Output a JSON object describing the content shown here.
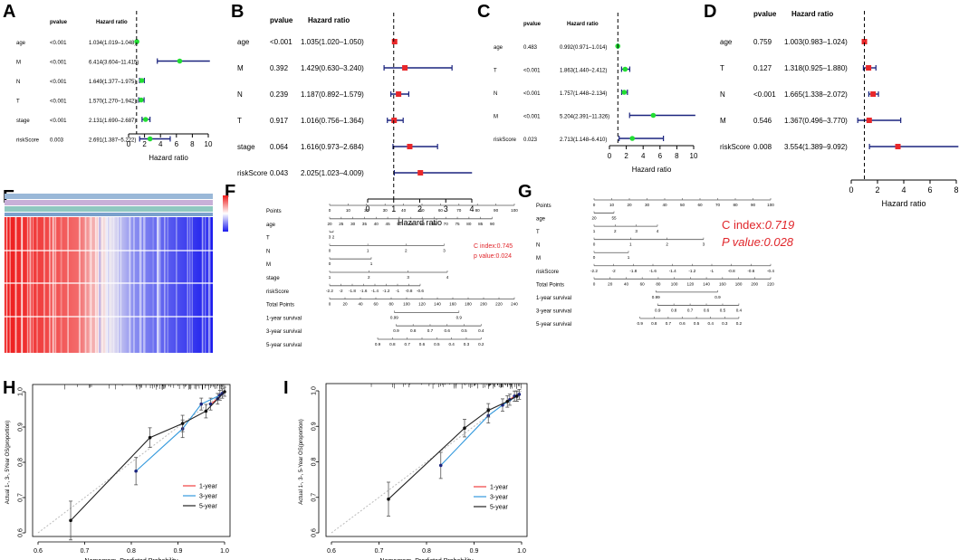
{
  "panel_labels": [
    "A",
    "B",
    "C",
    "D",
    "E",
    "F",
    "G",
    "H",
    "I"
  ],
  "forest_header": {
    "pvalue": "pvalue",
    "hr": "Hazard ratio",
    "xlabel": "Hazard ratio"
  },
  "chart_data": [
    {
      "id": "A",
      "type": "forest",
      "title": "",
      "xlabel": "Hazard ratio",
      "xlim": [
        0,
        10
      ],
      "ticks": [
        "0",
        "2",
        "4",
        "6",
        "8",
        "10"
      ],
      "color": "#22dd33",
      "reference": 1,
      "rows": [
        {
          "name": "age",
          "p": "<0.001",
          "hr_text": "1.034(1.019–1.048)",
          "hr": 1.034,
          "lo": 1.019,
          "hi": 1.048
        },
        {
          "name": "M",
          "p": "<0.001",
          "hr_text": "6.414(3.604–11.415)",
          "hr": 6.414,
          "lo": 3.604,
          "hi": 11.415
        },
        {
          "name": "N",
          "p": "<0.001",
          "hr_text": "1.649(1.377–1.975)",
          "hr": 1.649,
          "lo": 1.377,
          "hi": 1.975
        },
        {
          "name": "T",
          "p": "<0.001",
          "hr_text": "1.570(1.270–1.942)",
          "hr": 1.57,
          "lo": 1.27,
          "hi": 1.942
        },
        {
          "name": "stage",
          "p": "<0.001",
          "hr_text": "2.131(1.690–2.687)",
          "hr": 2.131,
          "lo": 1.69,
          "hi": 2.687
        },
        {
          "name": "riskScore",
          "p": "0.003",
          "hr_text": "2.691(1.387–5.222)",
          "hr": 2.691,
          "lo": 1.387,
          "hi": 5.222
        }
      ]
    },
    {
      "id": "B",
      "type": "forest",
      "title": "",
      "xlabel": "Hazard ratio",
      "xlim": [
        0,
        4
      ],
      "ticks": [
        "0",
        "1",
        "2",
        "3",
        "4"
      ],
      "color": "#e8272a",
      "reference": 1,
      "rows": [
        {
          "name": "age",
          "p": "<0.001",
          "hr_text": "1.035(1.020–1.050)",
          "hr": 1.035,
          "lo": 1.02,
          "hi": 1.05
        },
        {
          "name": "M",
          "p": "0.392",
          "hr_text": "1.429(0.630–3.240)",
          "hr": 1.429,
          "lo": 0.63,
          "hi": 3.24
        },
        {
          "name": "N",
          "p": "0.239",
          "hr_text": "1.187(0.892–1.579)",
          "hr": 1.187,
          "lo": 0.892,
          "hi": 1.579
        },
        {
          "name": "T",
          "p": "0.917",
          "hr_text": "1.016(0.756–1.364)",
          "hr": 1.016,
          "lo": 0.756,
          "hi": 1.364
        },
        {
          "name": "stage",
          "p": "0.064",
          "hr_text": "1.616(0.973–2.684)",
          "hr": 1.616,
          "lo": 0.973,
          "hi": 2.684
        },
        {
          "name": "riskScore",
          "p": "0.043",
          "hr_text": "2.025(1.023–4.009)",
          "hr": 2.025,
          "lo": 1.023,
          "hi": 4.009
        }
      ]
    },
    {
      "id": "C",
      "type": "forest",
      "title": "",
      "xlabel": "Hazard ratio",
      "xlim": [
        0,
        10
      ],
      "ticks": [
        "0",
        "2",
        "4",
        "6",
        "8",
        "10"
      ],
      "color": "#22dd33",
      "reference": 1,
      "rows": [
        {
          "name": "age",
          "p": "0.483",
          "hr_text": "0.992(0.971–1.014)",
          "hr": 0.992,
          "lo": 0.971,
          "hi": 1.014
        },
        {
          "name": "T",
          "p": "<0.001",
          "hr_text": "1.863(1.440–2.412)",
          "hr": 1.863,
          "lo": 1.44,
          "hi": 2.412
        },
        {
          "name": "N",
          "p": "<0.001",
          "hr_text": "1.757(1.448–2.134)",
          "hr": 1.757,
          "lo": 1.448,
          "hi": 2.134
        },
        {
          "name": "M",
          "p": "<0.001",
          "hr_text": "5.204(2.391–11.326)",
          "hr": 5.204,
          "lo": 2.391,
          "hi": 11.326
        },
        {
          "name": "riskScore",
          "p": "0.023",
          "hr_text": "2.713(1.148–6.410)",
          "hr": 2.713,
          "lo": 1.148,
          "hi": 6.41
        }
      ]
    },
    {
      "id": "D",
      "type": "forest",
      "title": "",
      "xlabel": "Hazard ratio",
      "xlim": [
        0,
        8
      ],
      "ticks": [
        "0",
        "2",
        "4",
        "6",
        "8"
      ],
      "color": "#e8272a",
      "reference": 1,
      "rows": [
        {
          "name": "age",
          "p": "0.759",
          "hr_text": "1.003(0.983–1.024)",
          "hr": 1.003,
          "lo": 0.983,
          "hi": 1.024
        },
        {
          "name": "T",
          "p": "0.127",
          "hr_text": "1.318(0.925–1.880)",
          "hr": 1.318,
          "lo": 0.925,
          "hi": 1.88
        },
        {
          "name": "N",
          "p": "<0.001",
          "hr_text": "1.665(1.338–2.072)",
          "hr": 1.665,
          "lo": 1.338,
          "hi": 2.072
        },
        {
          "name": "M",
          "p": "0.546",
          "hr_text": "1.367(0.496–3.770)",
          "hr": 1.367,
          "lo": 0.496,
          "hi": 3.77
        },
        {
          "name": "riskScore",
          "p": "0.008",
          "hr_text": "3.554(1.389–9.092)",
          "hr": 3.554,
          "lo": 1.389,
          "hi": 9.092
        }
      ]
    },
    {
      "id": "E",
      "type": "heatmap",
      "title": "",
      "xlabel": "",
      "ylabel": "",
      "colors": [
        "#1a1aee",
        "#ffffff",
        "#ee1a1a"
      ],
      "rows": 4,
      "pattern": "high in left group, low in right group"
    },
    {
      "id": "F",
      "type": "nomogram",
      "title": "",
      "annotations": [
        "C index:0.745",
        "p value:0.024"
      ],
      "axes": [
        {
          "name": "Points",
          "ticks": [
            "0",
            "10",
            "20",
            "30",
            "40",
            "50",
            "60",
            "70",
            "80",
            "90",
            "100"
          ]
        },
        {
          "name": "age",
          "ticks": [
            "20",
            "25",
            "30",
            "35",
            "40",
            "45",
            "50",
            "55",
            "60",
            "65",
            "70",
            "75",
            "80",
            "85",
            "90"
          ]
        },
        {
          "name": "T",
          "ticks": [
            "3",
            "2"
          ]
        },
        {
          "name": "N",
          "ticks": [
            "0",
            "1",
            "2",
            "3"
          ]
        },
        {
          "name": "M",
          "ticks": [
            "0",
            "1"
          ]
        },
        {
          "name": "stage",
          "ticks": [
            "1",
            "2",
            "3",
            "4"
          ]
        },
        {
          "name": "riskScore",
          "ticks": [
            "-2.2",
            "-2",
            "-1.8",
            "-1.6",
            "-1.4",
            "-1.2",
            "-1",
            "-0.8",
            "-0.6"
          ]
        },
        {
          "name": "Total Points",
          "ticks": [
            "0",
            "20",
            "40",
            "60",
            "80",
            "100",
            "120",
            "140",
            "160",
            "180",
            "200",
            "220",
            "240"
          ]
        },
        {
          "name": "1-year survival",
          "ticks": [
            "0.99",
            "0.9"
          ]
        },
        {
          "name": "3-year survival",
          "ticks": [
            "0.9",
            "0.8",
            "0.7",
            "0.6",
            "0.5",
            "0.4"
          ]
        },
        {
          "name": "5-year survival",
          "ticks": [
            "0.9",
            "0.8",
            "0.7",
            "0.6",
            "0.5",
            "0.4",
            "0.3",
            "0.2"
          ]
        }
      ]
    },
    {
      "id": "G",
      "type": "nomogram",
      "title": "",
      "annotations": [
        "C index:",
        "0.719",
        "P value:",
        "0.028"
      ],
      "axes": [
        {
          "name": "Points",
          "ticks": [
            "0",
            "10",
            "20",
            "30",
            "40",
            "50",
            "60",
            "70",
            "80",
            "90",
            "100"
          ]
        },
        {
          "name": "age",
          "ticks": [
            "20",
            "55"
          ]
        },
        {
          "name": "T",
          "ticks": [
            "1",
            "2",
            "3",
            "4"
          ]
        },
        {
          "name": "N",
          "ticks": [
            "0",
            "1",
            "2",
            "3"
          ]
        },
        {
          "name": "M",
          "ticks": [
            "0",
            "1"
          ]
        },
        {
          "name": "riskScore",
          "ticks": [
            "-2.2",
            "-2",
            "-1.8",
            "-1.6",
            "-1.4",
            "-1.2",
            "-1",
            "-0.8",
            "-0.6",
            "-0.4"
          ]
        },
        {
          "name": "Total Points",
          "ticks": [
            "0",
            "20",
            "40",
            "60",
            "80",
            "100",
            "120",
            "140",
            "160",
            "180",
            "200",
            "220"
          ]
        },
        {
          "name": "1-year survival",
          "ticks": [
            "0.99",
            "0.9"
          ]
        },
        {
          "name": "3-year survival",
          "ticks": [
            "0.9",
            "0.8",
            "0.7",
            "0.6",
            "0.5",
            "0.4"
          ]
        },
        {
          "name": "5-year survival",
          "ticks": [
            "0.9",
            "0.8",
            "0.7",
            "0.6",
            "0.5",
            "0.4",
            "0.3",
            "0.2"
          ]
        }
      ]
    },
    {
      "id": "H",
      "type": "line",
      "title": "",
      "xlabel": "Nomogram−Predicted Probability",
      "ylabel": "Actual 1-, 3-, 5Year OS(proportion)",
      "xlim": [
        0.6,
        1.0
      ],
      "ylim": [
        0.6,
        1.0
      ],
      "xticks": [
        "0.6",
        "0.7",
        "0.8",
        "0.9",
        "1.0"
      ],
      "yticks": [
        "0.6",
        "0.7",
        "0.8",
        "0.9",
        "1.0"
      ],
      "legend_position": "bottom-right",
      "series": [
        {
          "name": "1-year",
          "color": "#f04040",
          "x": [
            0.97,
            0.985,
            0.995
          ],
          "y": [
            0.965,
            0.98,
            0.995
          ]
        },
        {
          "name": "3-year",
          "color": "#3399dd",
          "x": [
            0.81,
            0.91,
            0.95,
            0.99
          ],
          "y": [
            0.775,
            0.895,
            0.965,
            0.99
          ]
        },
        {
          "name": "5-year",
          "color": "#222222",
          "x": [
            0.67,
            0.84,
            0.91,
            0.96,
            1.0
          ],
          "y": [
            0.635,
            0.87,
            0.91,
            0.945,
            1.0
          ]
        }
      ]
    },
    {
      "id": "I",
      "type": "line",
      "title": "",
      "xlabel": "Nomogram−Predicted Probability",
      "ylabel": "Actual 1-, 3-, 5-Year OS(proportion)",
      "xlim": [
        0.6,
        1.0
      ],
      "ylim": [
        0.6,
        1.0
      ],
      "xticks": [
        "0.6",
        "0.7",
        "0.8",
        "0.9",
        "1.0"
      ],
      "yticks": [
        "0.6",
        "0.7",
        "0.8",
        "0.9",
        "1.0"
      ],
      "legend_position": "bottom-center",
      "series": [
        {
          "name": "1-year",
          "color": "#f04040",
          "x": [
            0.975,
            0.985,
            0.995
          ],
          "y": [
            0.975,
            0.985,
            0.99
          ]
        },
        {
          "name": "3-year",
          "color": "#3399dd",
          "x": [
            0.83,
            0.93,
            0.96,
            0.99
          ],
          "y": [
            0.79,
            0.93,
            0.96,
            0.985
          ]
        },
        {
          "name": "5-year",
          "color": "#222222",
          "x": [
            0.72,
            0.88,
            0.93,
            0.97,
            0.99
          ],
          "y": [
            0.695,
            0.895,
            0.945,
            0.97,
            0.985
          ]
        }
      ]
    }
  ]
}
